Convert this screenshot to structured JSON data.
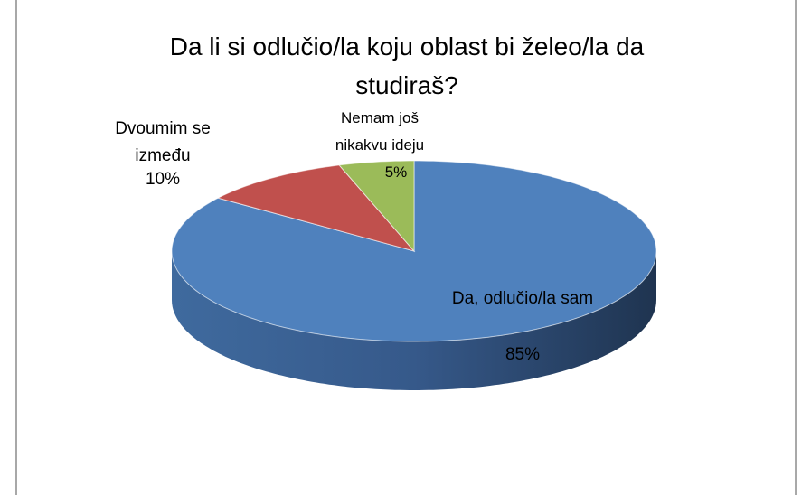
{
  "chart_data": {
    "type": "pie",
    "title": "Da li si odlučio/la koju oblast bi želeo/la da studiraš?",
    "categories": [
      "Da, odlučio/la sam",
      "Dvoumim se između",
      "Nemam još nikakvu ideju"
    ],
    "values": [
      85,
      10,
      5
    ],
    "value_labels": [
      "85%",
      "10%",
      "5%"
    ],
    "colors": [
      "#4f81bd",
      "#c0504d",
      "#9bbb59"
    ]
  }
}
